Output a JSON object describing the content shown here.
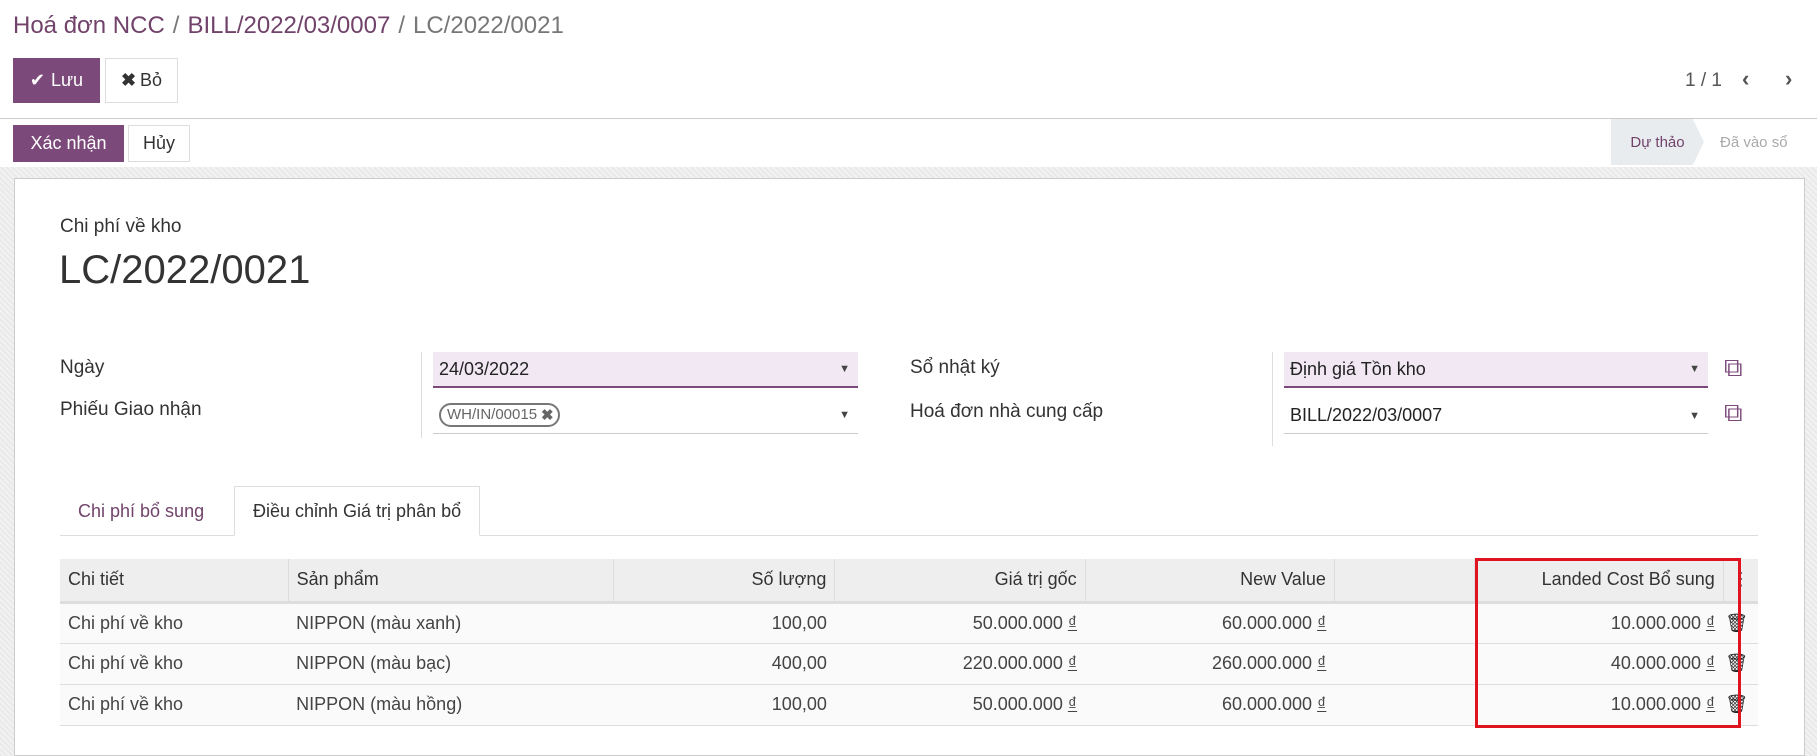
{
  "breadcrumb": {
    "items": [
      "Hoá đơn NCC",
      "BILL/2022/03/0007",
      "LC/2022/0021"
    ],
    "separator": "/"
  },
  "toolbar": {
    "save_label": "Lưu",
    "discard_label": "Bỏ",
    "pager": "1 / 1"
  },
  "actions": {
    "confirm_label": "Xác nhận",
    "cancel_label": "Hủy"
  },
  "statusbar": {
    "stages": [
      "Dự thảo",
      "Đã vào sổ"
    ],
    "active": "Dự thảo"
  },
  "form": {
    "subtitle": "Chi phí về kho",
    "title": "LC/2022/0021",
    "fields": {
      "date": {
        "label": "Ngày",
        "value": "24/03/2022"
      },
      "transfers": {
        "label": "Phiếu Giao nhận",
        "tags": [
          "WH/IN/00015"
        ]
      },
      "journal": {
        "label": "Sổ nhật ký",
        "value": "Định giá Tồn kho"
      },
      "vendor_bill": {
        "label": "Hoá đơn nhà cung cấp",
        "value": "BILL/2022/03/0007"
      }
    }
  },
  "tabs": [
    {
      "label": "Chi phí bổ sung",
      "active": false
    },
    {
      "label": "Điều chỉnh Giá trị phân bổ",
      "active": true
    }
  ],
  "table": {
    "columns": [
      "Chi tiết",
      "Sản phẩm",
      "Số lượng",
      "Giá trị gốc",
      "New Value",
      "Landed Cost Bổ sung"
    ],
    "currency": "₫",
    "rows": [
      {
        "detail": "Chi phí về kho",
        "product": "NIPPON (màu xanh)",
        "qty": "100,00",
        "former": "50.000.000",
        "new": "60.000.000",
        "added": "10.000.000"
      },
      {
        "detail": "Chi phí về kho",
        "product": "NIPPON (màu bạc)",
        "qty": "400,00",
        "former": "220.000.000",
        "new": "260.000.000",
        "added": "40.000.000"
      },
      {
        "detail": "Chi phí về kho",
        "product": "NIPPON (màu hồng)",
        "qty": "100,00",
        "former": "50.000.000",
        "new": "60.000.000",
        "added": "10.000.000"
      }
    ]
  },
  "colors": {
    "brand": "#7c4a7a",
    "highlight_box": "#e0141e",
    "required_bg": "#f1e8f3"
  }
}
